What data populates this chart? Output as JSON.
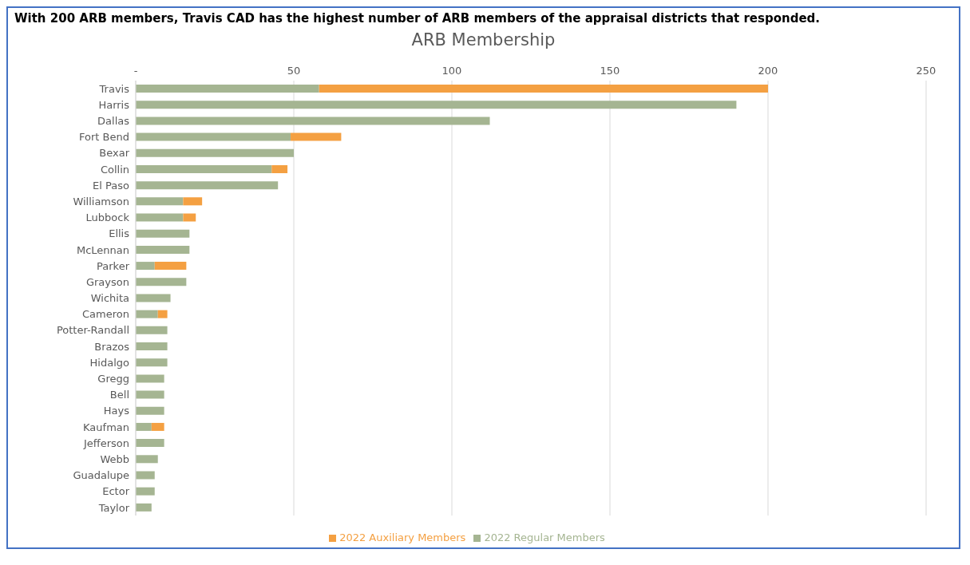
{
  "chart_data": {
    "type": "bar",
    "orientation": "horizontal",
    "stacked": true,
    "subtitle": "With 200 ARB members, Travis CAD has the highest number of ARB members of the appraisal districts that responded.",
    "title": "ARB Membership",
    "categories": [
      "Travis",
      "Harris",
      "Dallas",
      "Fort Bend",
      "Bexar",
      "Collin",
      "El Paso",
      "Williamson",
      "Lubbock",
      "Ellis",
      "McLennan",
      "Parker",
      "Grayson",
      "Wichita",
      "Cameron",
      "Potter-Randall",
      "Brazos",
      "Hidalgo",
      "Gregg",
      "Bell",
      "Hays",
      "Kaufman",
      "Jefferson",
      "Webb",
      "Guadalupe",
      "Ector",
      "Taylor"
    ],
    "series": [
      {
        "name": "2022 Regular Members",
        "color": "#a5b592",
        "values": [
          58,
          190,
          112,
          49,
          50,
          43,
          45,
          15,
          15,
          17,
          17,
          6,
          16,
          11,
          7,
          10,
          10,
          10,
          9,
          9,
          9,
          5,
          9,
          7,
          6,
          6,
          5
        ]
      },
      {
        "name": "2022 Auxiliary Members",
        "color": "#f4a042",
        "values": [
          142,
          null,
          null,
          16,
          null,
          5,
          null,
          6,
          4,
          null,
          null,
          10,
          null,
          null,
          3,
          null,
          null,
          null,
          null,
          null,
          null,
          4,
          null,
          null,
          null,
          null,
          null
        ]
      }
    ],
    "xlim": [
      0,
      250
    ],
    "xticks": [
      {
        "value": 0,
        "label": "-"
      },
      50,
      100,
      150,
      200,
      250
    ],
    "grid": "x",
    "legend": "bottom"
  }
}
